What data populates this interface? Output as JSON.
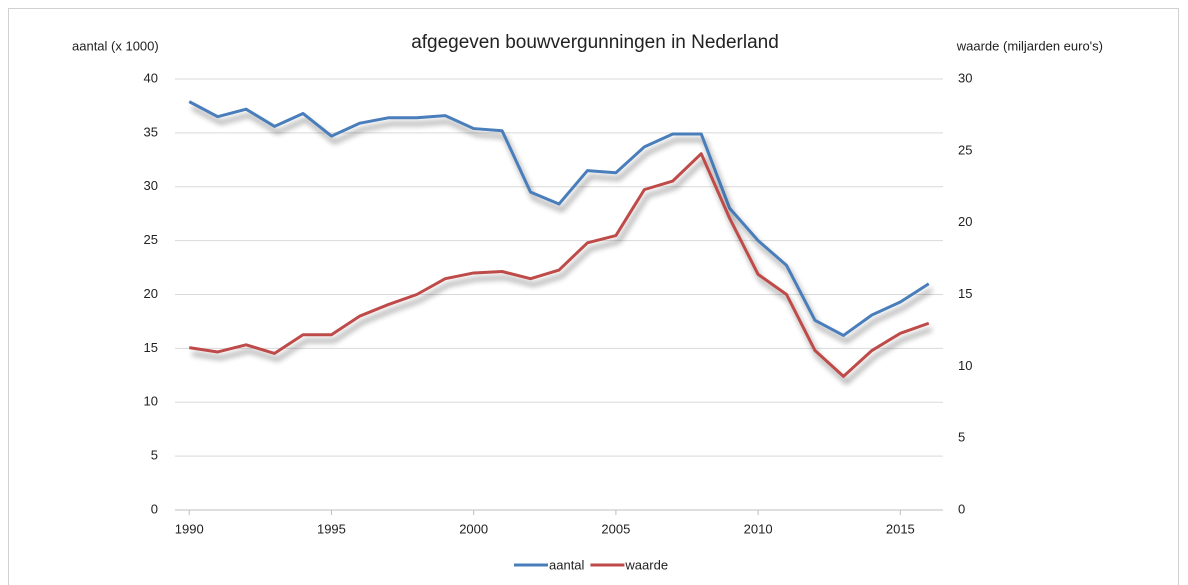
{
  "chart_data": {
    "type": "line",
    "title": "afgegeven bouwvergunningen in Nederland",
    "y_label": "aantal (x 1000)",
    "y2_label": "waarde (miljarden euro's)",
    "x": [
      1990,
      1991,
      1992,
      1993,
      1994,
      1995,
      1996,
      1997,
      1998,
      1999,
      2000,
      2001,
      2002,
      2003,
      2004,
      2005,
      2006,
      2007,
      2008,
      2009,
      2010,
      2011,
      2012,
      2013,
      2014,
      2015,
      2016
    ],
    "series": [
      {
        "name": "aantal",
        "color": "#4a7ebb",
        "values": [
          37.9,
          36.5,
          37.2,
          35.6,
          36.8,
          34.7,
          35.9,
          36.4,
          36.4,
          36.6,
          35.4,
          35.2,
          29.5,
          28.4,
          31.5,
          31.3,
          33.7,
          34.9,
          34.9,
          28.0,
          25.0,
          22.7,
          17.6,
          16.2,
          18.1,
          19.3,
          21.0
        ]
      },
      {
        "name": "waarde",
        "color": "#be4b48",
        "axis": "y2",
        "values": [
          11.3,
          11.0,
          11.5,
          10.9,
          12.2,
          12.2,
          13.5,
          14.3,
          15.0,
          16.1,
          16.5,
          16.6,
          16.1,
          16.7,
          18.6,
          19.1,
          22.3,
          22.9,
          24.8,
          20.3,
          16.4,
          15.0,
          11.1,
          9.3,
          11.1,
          12.3,
          13.0
        ]
      }
    ],
    "xlim": [
      1989.5,
      2016.5
    ],
    "xticks": [
      1990,
      1995,
      2000,
      2005,
      2010,
      2015
    ],
    "ylim": [
      0,
      40
    ],
    "yticks": [
      0,
      5,
      10,
      15,
      20,
      25,
      30,
      35,
      40
    ],
    "y2lim": [
      0,
      30
    ],
    "y2ticks": [
      0,
      5,
      10,
      15,
      20,
      25,
      30
    ],
    "grid": true,
    "legend": "bottom"
  }
}
